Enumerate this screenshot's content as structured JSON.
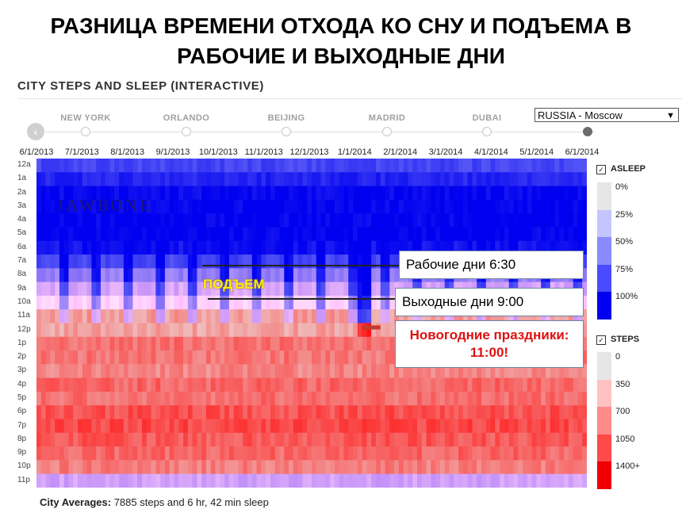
{
  "slide_title": "РАЗНИЦА ВРЕМЕНИ ОТХОДА КО СНУ И ПОДЪЕМА В РАБОЧИЕ И ВЫХОДНЫЕ ДНИ",
  "app_title": "CITY STEPS AND SLEEP (INTERACTIVE)",
  "cities": [
    "NEW YORK",
    "ORLANDO",
    "BEIJING",
    "MADRID",
    "DUBAI"
  ],
  "selected_city": "RUSSIA - Moscow",
  "icons": {
    "prev": "chevron-left-icon",
    "dropdown": "chevron-down-icon",
    "checkbox": "checkmark-icon"
  },
  "brand": "JAWBONE",
  "annotations": {
    "weekday": "Рабочие дни 6:30",
    "weekend": "Выходные дни 9:00",
    "new_year": "Новогодние праздники: 11:00!",
    "wake": "ПОДЪЕМ"
  },
  "footer": {
    "label": "City Averages:",
    "text": "7885 steps and 6 hr, 42 min sleep"
  },
  "chart_data": {
    "type": "heatmap",
    "x_ticks": [
      "6/1/2013",
      "7/1/2013",
      "8/1/2013",
      "9/1/2013",
      "10/1/2013",
      "11/1/2013",
      "12/1/2013",
      "1/1/2014",
      "2/1/2014",
      "3/1/2014",
      "4/1/2014",
      "5/1/2014",
      "6/1/2014"
    ],
    "y_ticks": [
      "12a",
      "1a",
      "2a",
      "3a",
      "4a",
      "5a",
      "6a",
      "7a",
      "8a",
      "9a",
      "10a",
      "11a",
      "12p",
      "1p",
      "2p",
      "3p",
      "4p",
      "5p",
      "6p",
      "7p",
      "8p",
      "9p",
      "10p",
      "11p"
    ],
    "hourly_profile": {
      "asleep_pct": [
        70,
        85,
        98,
        100,
        100,
        100,
        92,
        70,
        45,
        28,
        10,
        4,
        0,
        0,
        0,
        0,
        0,
        0,
        0,
        0,
        0,
        0,
        8,
        30
      ],
      "steps": [
        150,
        50,
        0,
        0,
        0,
        0,
        80,
        350,
        650,
        520,
        500,
        500,
        450,
        800,
        750,
        650,
        850,
        800,
        1000,
        1050,
        950,
        850,
        700,
        400
      ]
    },
    "events": [
      {
        "label": "Новогодние праздники",
        "date": "1/1/2014",
        "wake": "11:00"
      }
    ],
    "legend": {
      "asleep": {
        "title": "ASLEEP",
        "levels": [
          "0%",
          "25%",
          "50%",
          "75%",
          "100%"
        ],
        "colors": [
          "#e6e6e6",
          "#c4c4ff",
          "#8a8aff",
          "#4a4aff",
          "#0000ee"
        ]
      },
      "steps": {
        "title": "STEPS",
        "levels": [
          "0",
          "350",
          "700",
          "1050",
          "1400+"
        ],
        "colors": [
          "#e6e6e6",
          "#ffc2c2",
          "#ff8a8a",
          "#ff4a4a",
          "#ee0000"
        ]
      }
    }
  }
}
